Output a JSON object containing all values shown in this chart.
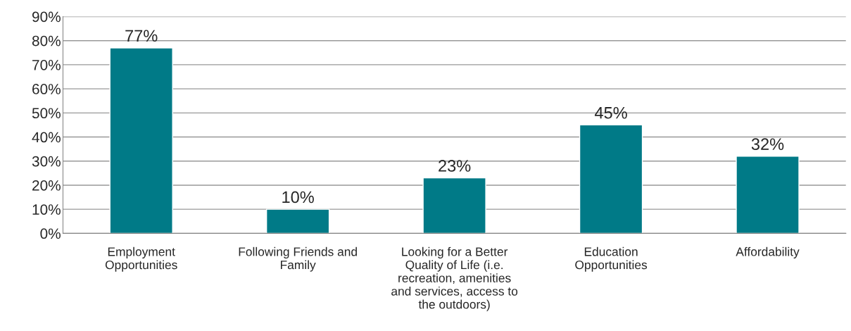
{
  "chart_data": {
    "type": "bar",
    "categories": [
      "Employment\nOpportunities",
      "Following Friends and\nFamily",
      "Looking for a Better\nQuality of Life (i.e.\nrecreation, amenities\nand services, access to\nthe outdoors)",
      "Education\nOpportunities",
      "Affordability"
    ],
    "values": [
      77,
      10,
      23,
      45,
      32
    ],
    "color": "#007a87",
    "ylim": [
      0,
      90
    ],
    "yticks": [
      {
        "value": 0,
        "label": "0%"
      },
      {
        "value": 10,
        "label": "10%"
      },
      {
        "value": 20,
        "label": "20%"
      },
      {
        "value": 30,
        "label": "30%"
      },
      {
        "value": 40,
        "label": "40%"
      },
      {
        "value": 50,
        "label": "50%"
      },
      {
        "value": 60,
        "label": "60%"
      },
      {
        "value": 70,
        "label": "70%"
      },
      {
        "value": 80,
        "label": "80%"
      },
      {
        "value": 90,
        "label": "90%"
      }
    ],
    "grid": "y",
    "data_labels": true,
    "value_labels": [
      "77%",
      "10%",
      "23%",
      "45%",
      "32%"
    ]
  }
}
